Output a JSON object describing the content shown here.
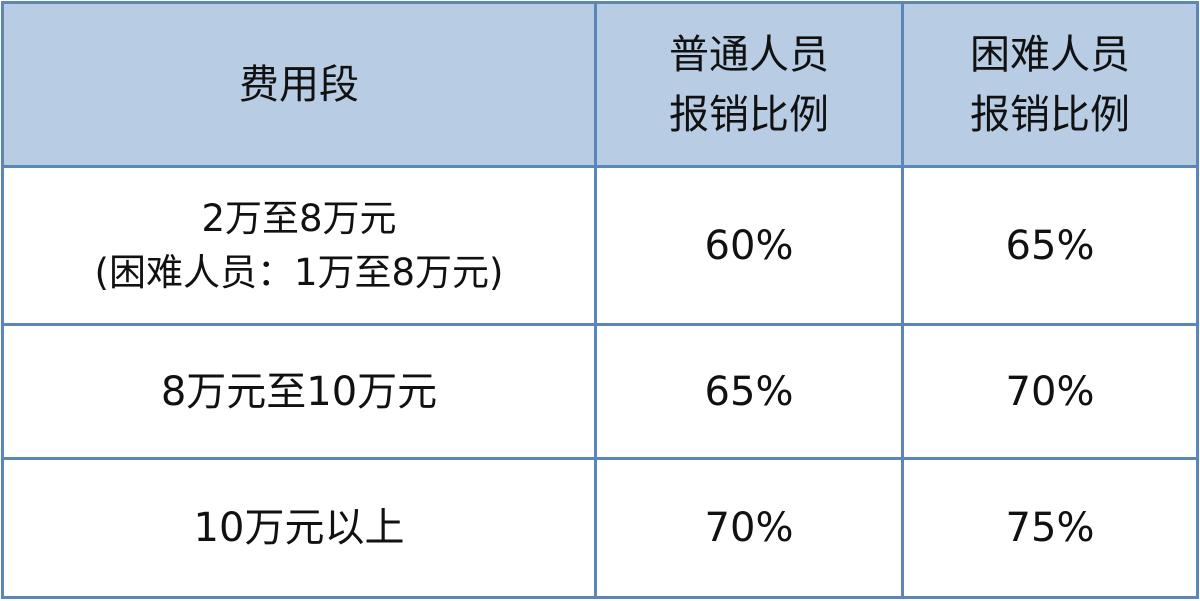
{
  "table": {
    "headers": [
      {
        "lines": [
          "费用段"
        ]
      },
      {
        "lines": [
          "普通人员",
          "报销比例"
        ]
      },
      {
        "lines": [
          "困难人员",
          "报销比例"
        ]
      }
    ],
    "rows": [
      {
        "range_lines": [
          "2万至8万元",
          "(困难人员：1万至8万元)"
        ],
        "normal": "60%",
        "hardship": "65%"
      },
      {
        "range_lines": [
          "8万元至10万元"
        ],
        "normal": "65%",
        "hardship": "70%"
      },
      {
        "range_lines": [
          "10万元以上"
        ],
        "normal": "70%",
        "hardship": "75%"
      }
    ]
  },
  "colors": {
    "header_bg": "#b8cde4",
    "border": "#5b86b8"
  }
}
